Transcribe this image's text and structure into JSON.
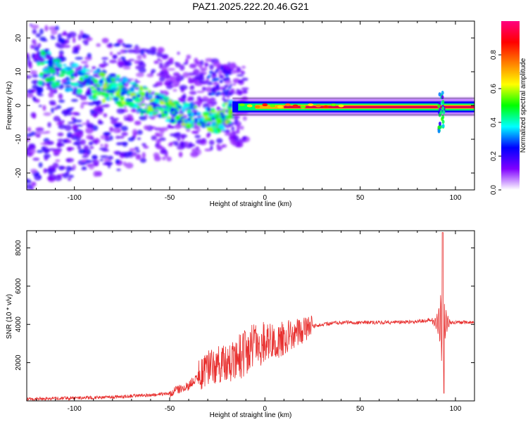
{
  "title": "PAZ1.2025.222.20.46.G21",
  "colors": {
    "snr_line": "#e8302f",
    "dominant_line": "#e0004a",
    "background": "#ffffff"
  },
  "chart_data": [
    {
      "type": "heatmap",
      "xlabel": "Height of straight line (km)",
      "ylabel": "Frequency (Hz)",
      "xlim": [
        -125,
        110
      ],
      "ylim": [
        -25,
        25
      ],
      "xticks": [
        -100,
        -50,
        0,
        50,
        100
      ],
      "yticks": [
        -20,
        -10,
        0,
        10,
        20
      ],
      "colorbar": {
        "label": "Normalized spectral amplitude",
        "range": [
          0,
          1
        ],
        "ticks": [
          "0.0",
          "0.2",
          "0.4",
          "0.6",
          "0.8"
        ],
        "colormap": [
          "#ffffff",
          "#8000ff",
          "#0000ff",
          "#00ffff",
          "#00ff00",
          "#ffff00",
          "#ff8000",
          "#ff0000",
          "#ff0080"
        ]
      },
      "dominant_ridge": {
        "x": [
          -120,
          -100,
          -80,
          -60,
          -40,
          -25,
          -15,
          0,
          10,
          30,
          60,
          90,
          95,
          110
        ],
        "y": [
          12,
          8,
          5,
          1,
          -3,
          -5,
          0,
          0,
          0,
          -0.5,
          -1,
          -1,
          -1,
          -1
        ]
      }
    },
    {
      "type": "line",
      "xlabel": "Height of straight line (km)",
      "ylabel": "SNR (10 * v/v)",
      "xlim": [
        -125,
        110
      ],
      "ylim": [
        0,
        8900
      ],
      "xticks": [
        -100,
        -50,
        0,
        50,
        100
      ],
      "yticks": [
        2000,
        4000,
        6000,
        8000
      ],
      "series": [
        {
          "x": [
            -125,
            -100,
            -80,
            -60,
            -50,
            -45,
            -40,
            -35,
            -30,
            -25,
            -20,
            -15,
            -10,
            -5,
            0,
            5,
            10,
            15,
            20,
            25,
            30,
            35,
            40,
            50,
            60,
            70,
            80,
            85,
            88,
            90,
            92,
            93,
            94,
            95,
            97,
            100,
            110
          ],
          "y": [
            100,
            150,
            200,
            300,
            400,
            600,
            800,
            1300,
            1700,
            1900,
            2100,
            2300,
            2600,
            2900,
            3000,
            3100,
            3300,
            3500,
            3700,
            3900,
            4000,
            4050,
            4100,
            4100,
            4100,
            4120,
            4150,
            4200,
            4300,
            5000,
            600,
            8900,
            3800,
            4100,
            4100,
            4100,
            4100
          ]
        }
      ]
    }
  ]
}
